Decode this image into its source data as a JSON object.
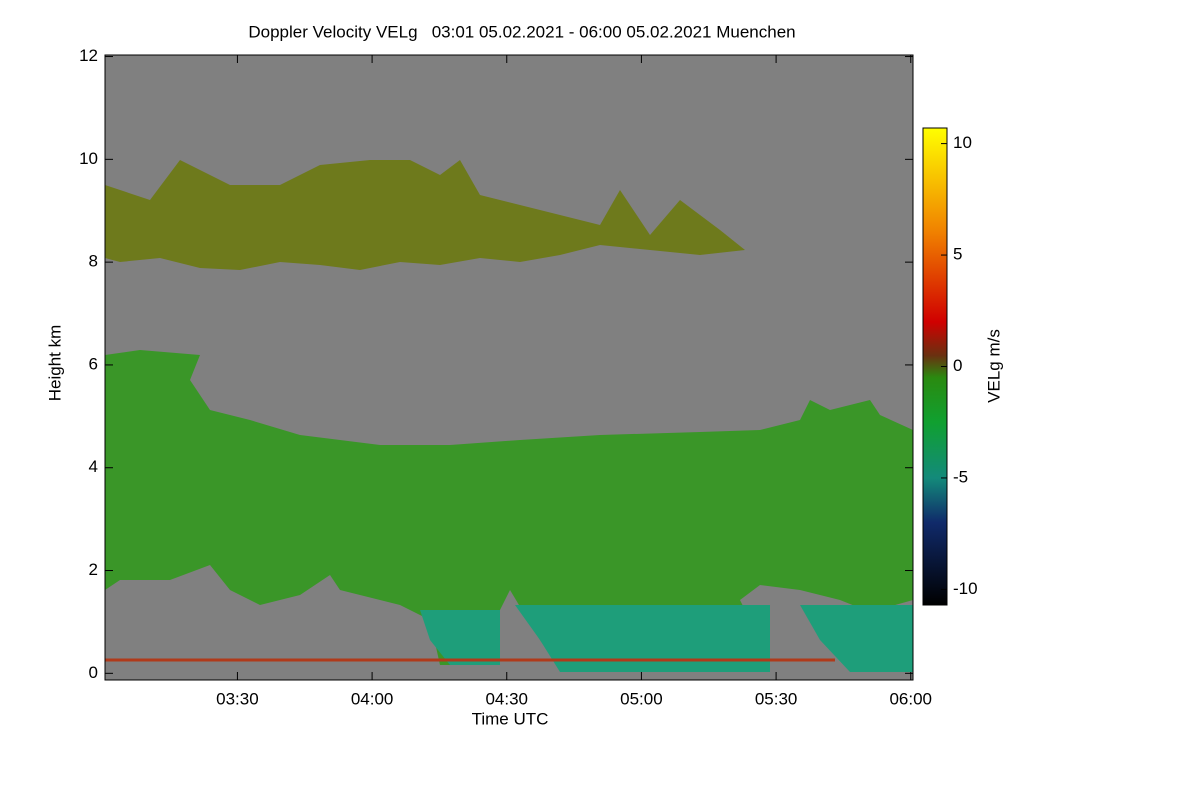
{
  "chart_data": {
    "type": "heatmap",
    "title": "Doppler Velocity VELg   03:01 05.02.2021 - 06:00 05.02.2021 Muenchen",
    "x_label": "Time UTC",
    "y_label": "Height km",
    "xlim": [
      180.5,
      360.5
    ],
    "xticks": [
      {
        "value": 210,
        "label": "03:30"
      },
      {
        "value": 240,
        "label": "04:00"
      },
      {
        "value": 270,
        "label": "04:30"
      },
      {
        "value": 300,
        "label": "05:00"
      },
      {
        "value": 330,
        "label": "05:30"
      },
      {
        "value": 360,
        "label": "06:00"
      }
    ],
    "ylim": [
      -0.13,
      12.03
    ],
    "yticks": [
      0,
      2,
      4,
      6,
      8,
      10,
      12
    ],
    "colorbar": {
      "label": "VELg m/s",
      "lim": [
        -10.7,
        10.7
      ],
      "ticks": [
        -10,
        -5,
        0,
        5,
        10
      ],
      "colorscale": [
        {
          "value": -10.7,
          "color": "#000000"
        },
        {
          "value": -7,
          "color": "#102a6a"
        },
        {
          "value": -5,
          "color": "#138a7a"
        },
        {
          "value": -2.5,
          "color": "#10a030"
        },
        {
          "value": -0.5,
          "color": "#2a8a10"
        },
        {
          "value": 0.5,
          "color": "#6a3010"
        },
        {
          "value": 2,
          "color": "#d00000"
        },
        {
          "value": 6,
          "color": "#f08000"
        },
        {
          "value": 10.7,
          "color": "#ffff00"
        }
      ]
    }
  }
}
